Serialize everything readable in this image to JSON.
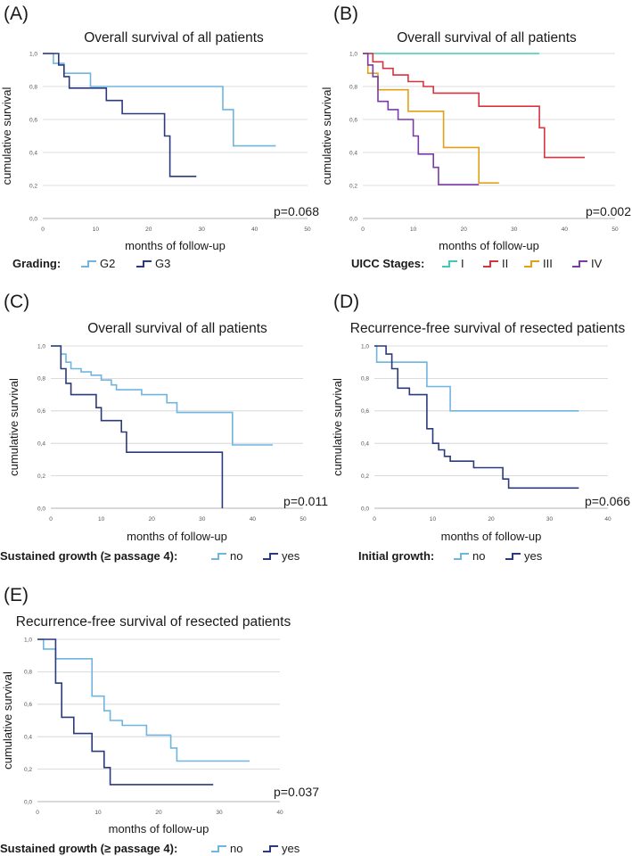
{
  "colors": {
    "G2": "#6fb5e0",
    "G3": "#2b3a7a",
    "I": "#40c9b5",
    "II": "#d8333f",
    "III": "#e3a017",
    "IV": "#7b3aa8",
    "no": "#6fb5e0",
    "yes": "#2b3a7a"
  },
  "chart_data": [
    {
      "id": "A",
      "letter": "(A)",
      "type": "line",
      "title": "Overall survival of all patients",
      "xlabel": "months of follow-up",
      "ylabel": "cumulative survival",
      "xlim": [
        0,
        50
      ],
      "ylim": [
        0,
        1
      ],
      "xticks": [
        "0",
        "10",
        "20",
        "30",
        "40",
        "50"
      ],
      "yticks": [
        "0,0",
        "0,2",
        "0,4",
        "0,6",
        "0,8",
        "1,0"
      ],
      "pvalue": "p=0.068",
      "legend_title": "Grading:",
      "series": [
        {
          "name": "G2",
          "color_key": "G2",
          "steps": [
            [
              0,
              1.0
            ],
            [
              2,
              0.94
            ],
            [
              4,
              0.88
            ],
            [
              9,
              0.8
            ],
            [
              34,
              0.66
            ],
            [
              36,
              0.44
            ],
            [
              44,
              0.44
            ]
          ]
        },
        {
          "name": "G3",
          "color_key": "G3",
          "steps": [
            [
              0,
              1.0
            ],
            [
              3,
              0.93
            ],
            [
              4,
              0.86
            ],
            [
              5,
              0.79
            ],
            [
              12,
              0.715
            ],
            [
              15,
              0.635
            ],
            [
              23,
              0.5
            ],
            [
              24,
              0.255
            ],
            [
              29,
              0.255
            ]
          ]
        }
      ]
    },
    {
      "id": "B",
      "letter": "(B)",
      "type": "line",
      "title": "Overall survival of all patients",
      "xlabel": "months of follow-up",
      "ylabel": "cumulative survival",
      "xlim": [
        0,
        50
      ],
      "ylim": [
        0,
        1
      ],
      "xticks": [
        "0",
        "10",
        "20",
        "30",
        "40",
        "50"
      ],
      "yticks": [
        "0,0",
        "0,2",
        "0,4",
        "0,6",
        "0,8",
        "1,0"
      ],
      "pvalue": "p=0.002",
      "legend_title": "UICC Stages:",
      "series": [
        {
          "name": "I",
          "color_key": "I",
          "steps": [
            [
              0,
              1.0
            ],
            [
              35,
              1.0
            ]
          ]
        },
        {
          "name": "II",
          "color_key": "II",
          "steps": [
            [
              0,
              1.0
            ],
            [
              2,
              0.95
            ],
            [
              4,
              0.91
            ],
            [
              6,
              0.87
            ],
            [
              9,
              0.83
            ],
            [
              12,
              0.8
            ],
            [
              14,
              0.76
            ],
            [
              23,
              0.68
            ],
            [
              35,
              0.55
            ],
            [
              36,
              0.37
            ],
            [
              44,
              0.37
            ]
          ]
        },
        {
          "name": "III",
          "color_key": "III",
          "steps": [
            [
              0,
              1.0
            ],
            [
              1,
              0.88
            ],
            [
              3,
              0.78
            ],
            [
              9,
              0.65
            ],
            [
              16,
              0.43
            ],
            [
              23,
              0.215
            ],
            [
              27,
              0.215
            ]
          ]
        },
        {
          "name": "IV",
          "color_key": "IV",
          "steps": [
            [
              0,
              1.0
            ],
            [
              1,
              0.93
            ],
            [
              2,
              0.86
            ],
            [
              3,
              0.71
            ],
            [
              5,
              0.66
            ],
            [
              7,
              0.6
            ],
            [
              10,
              0.5
            ],
            [
              11,
              0.39
            ],
            [
              14,
              0.31
            ],
            [
              15,
              0.205
            ],
            [
              23,
              0.205
            ]
          ]
        }
      ]
    },
    {
      "id": "C",
      "letter": "(C)",
      "type": "line",
      "title": "Overall survival of all patients",
      "xlabel": "months of follow-up",
      "ylabel": "cumulative survival",
      "xlim": [
        0,
        50
      ],
      "ylim": [
        0,
        1
      ],
      "xticks": [
        "0",
        "10",
        "20",
        "30",
        "40",
        "50"
      ],
      "yticks": [
        "0,0",
        "0,2",
        "0,4",
        "0,6",
        "0,8",
        "1,0"
      ],
      "pvalue": "p=0.011",
      "legend_title": "Sustained growth (≥ passage 4):",
      "series": [
        {
          "name": "no",
          "color_key": "no",
          "steps": [
            [
              0,
              1.0
            ],
            [
              2,
              0.95
            ],
            [
              3,
              0.9
            ],
            [
              4,
              0.86
            ],
            [
              6,
              0.84
            ],
            [
              8,
              0.82
            ],
            [
              10,
              0.79
            ],
            [
              12,
              0.76
            ],
            [
              13,
              0.73
            ],
            [
              18,
              0.7
            ],
            [
              23,
              0.65
            ],
            [
              25,
              0.59
            ],
            [
              36,
              0.39
            ],
            [
              44,
              0.39
            ]
          ]
        },
        {
          "name": "yes",
          "color_key": "yes",
          "steps": [
            [
              0,
              1.0
            ],
            [
              2,
              0.86
            ],
            [
              3,
              0.77
            ],
            [
              4,
              0.7
            ],
            [
              9,
              0.62
            ],
            [
              10,
              0.54
            ],
            [
              14,
              0.47
            ],
            [
              15,
              0.345
            ],
            [
              34,
              0.0
            ]
          ]
        }
      ]
    },
    {
      "id": "D",
      "letter": "(D)",
      "type": "line",
      "title": "Recurrence-free survival of resected patients",
      "xlabel": "months of follow-up",
      "ylabel": "cumulative survival",
      "xlim": [
        0,
        40
      ],
      "ylim": [
        0,
        1
      ],
      "xticks": [
        "0",
        "10",
        "20",
        "30",
        "40"
      ],
      "yticks": [
        "0,0",
        "0,2",
        "0,4",
        "0,6",
        "0,8",
        "1,0"
      ],
      "pvalue": "p=0.066",
      "legend_title": "Initial growth:",
      "series": [
        {
          "name": "no",
          "color_key": "no",
          "steps": [
            [
              0,
              1.0
            ],
            [
              0.4,
              0.9
            ],
            [
              9,
              0.75
            ],
            [
              13,
              0.6
            ],
            [
              35,
              0.6
            ]
          ]
        },
        {
          "name": "yes",
          "color_key": "yes",
          "steps": [
            [
              0,
              1.0
            ],
            [
              2,
              0.95
            ],
            [
              3,
              0.86
            ],
            [
              4,
              0.74
            ],
            [
              6,
              0.7
            ],
            [
              9,
              0.49
            ],
            [
              10,
              0.4
            ],
            [
              11,
              0.36
            ],
            [
              12,
              0.32
            ],
            [
              13,
              0.29
            ],
            [
              17,
              0.25
            ],
            [
              22,
              0.18
            ],
            [
              23,
              0.125
            ],
            [
              35,
              0.125
            ]
          ]
        }
      ]
    },
    {
      "id": "E",
      "letter": "(E)",
      "type": "line",
      "title": "Recurrence-free survival of resected patients",
      "xlabel": "months of follow-up",
      "ylabel": "cumulative survival",
      "xlim": [
        0,
        40
      ],
      "ylim": [
        0,
        1
      ],
      "xticks": [
        "0",
        "10",
        "20",
        "30",
        "40"
      ],
      "yticks": [
        "0,0",
        "0,2",
        "0,4",
        "0,6",
        "0,8",
        "1,0"
      ],
      "pvalue": "p=0.037",
      "legend_title": "Sustained growth (≥ passage 4):",
      "series": [
        {
          "name": "no",
          "color_key": "no",
          "steps": [
            [
              0,
              1.0
            ],
            [
              1,
              0.94
            ],
            [
              3,
              0.88
            ],
            [
              9,
              0.65
            ],
            [
              11,
              0.56
            ],
            [
              12,
              0.5
            ],
            [
              14,
              0.47
            ],
            [
              18,
              0.41
            ],
            [
              22,
              0.33
            ],
            [
              23,
              0.25
            ],
            [
              35,
              0.25
            ]
          ]
        },
        {
          "name": "yes",
          "color_key": "yes",
          "steps": [
            [
              0,
              1.0
            ],
            [
              3,
              0.73
            ],
            [
              4,
              0.52
            ],
            [
              6,
              0.42
            ],
            [
              9,
              0.31
            ],
            [
              11,
              0.21
            ],
            [
              12,
              0.105
            ],
            [
              29,
              0.105
            ]
          ]
        }
      ]
    }
  ]
}
